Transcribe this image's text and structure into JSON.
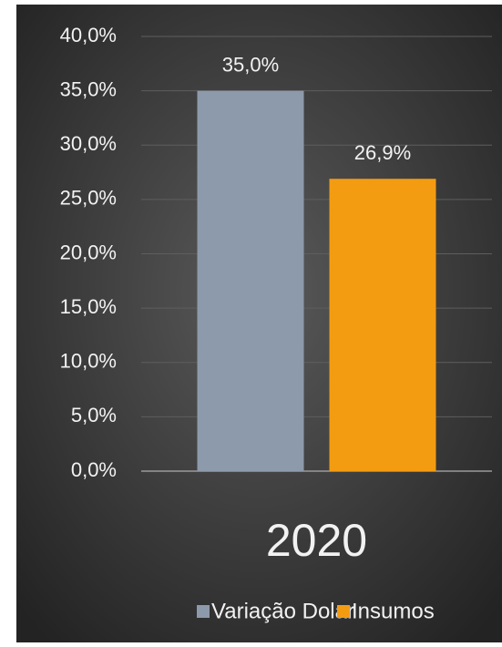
{
  "chart_data": {
    "type": "bar",
    "categories": [
      "2020"
    ],
    "series": [
      {
        "name": "Variação Dolar",
        "color": "#8d9aab",
        "values": [
          35
        ],
        "value_labels": [
          "35,0%"
        ]
      },
      {
        "name": "Insumos",
        "color": "#f39c12",
        "values": [
          26.9
        ],
        "value_labels": [
          "26,9%"
        ]
      }
    ],
    "ylim": [
      0,
      40
    ],
    "yticks": [
      {
        "value": 0,
        "label": "0,0%"
      },
      {
        "value": 5,
        "label": "5,0%"
      },
      {
        "value": 10,
        "label": "10,0%"
      },
      {
        "value": 15,
        "label": "15,0%"
      },
      {
        "value": 20,
        "label": "20,0%"
      },
      {
        "value": 25,
        "label": "25,0%"
      },
      {
        "value": 30,
        "label": "30,0%"
      },
      {
        "value": 35,
        "label": "35,0%"
      },
      {
        "value": 40,
        "label": "40,0%"
      }
    ],
    "grid": true,
    "legend": "bottom"
  }
}
